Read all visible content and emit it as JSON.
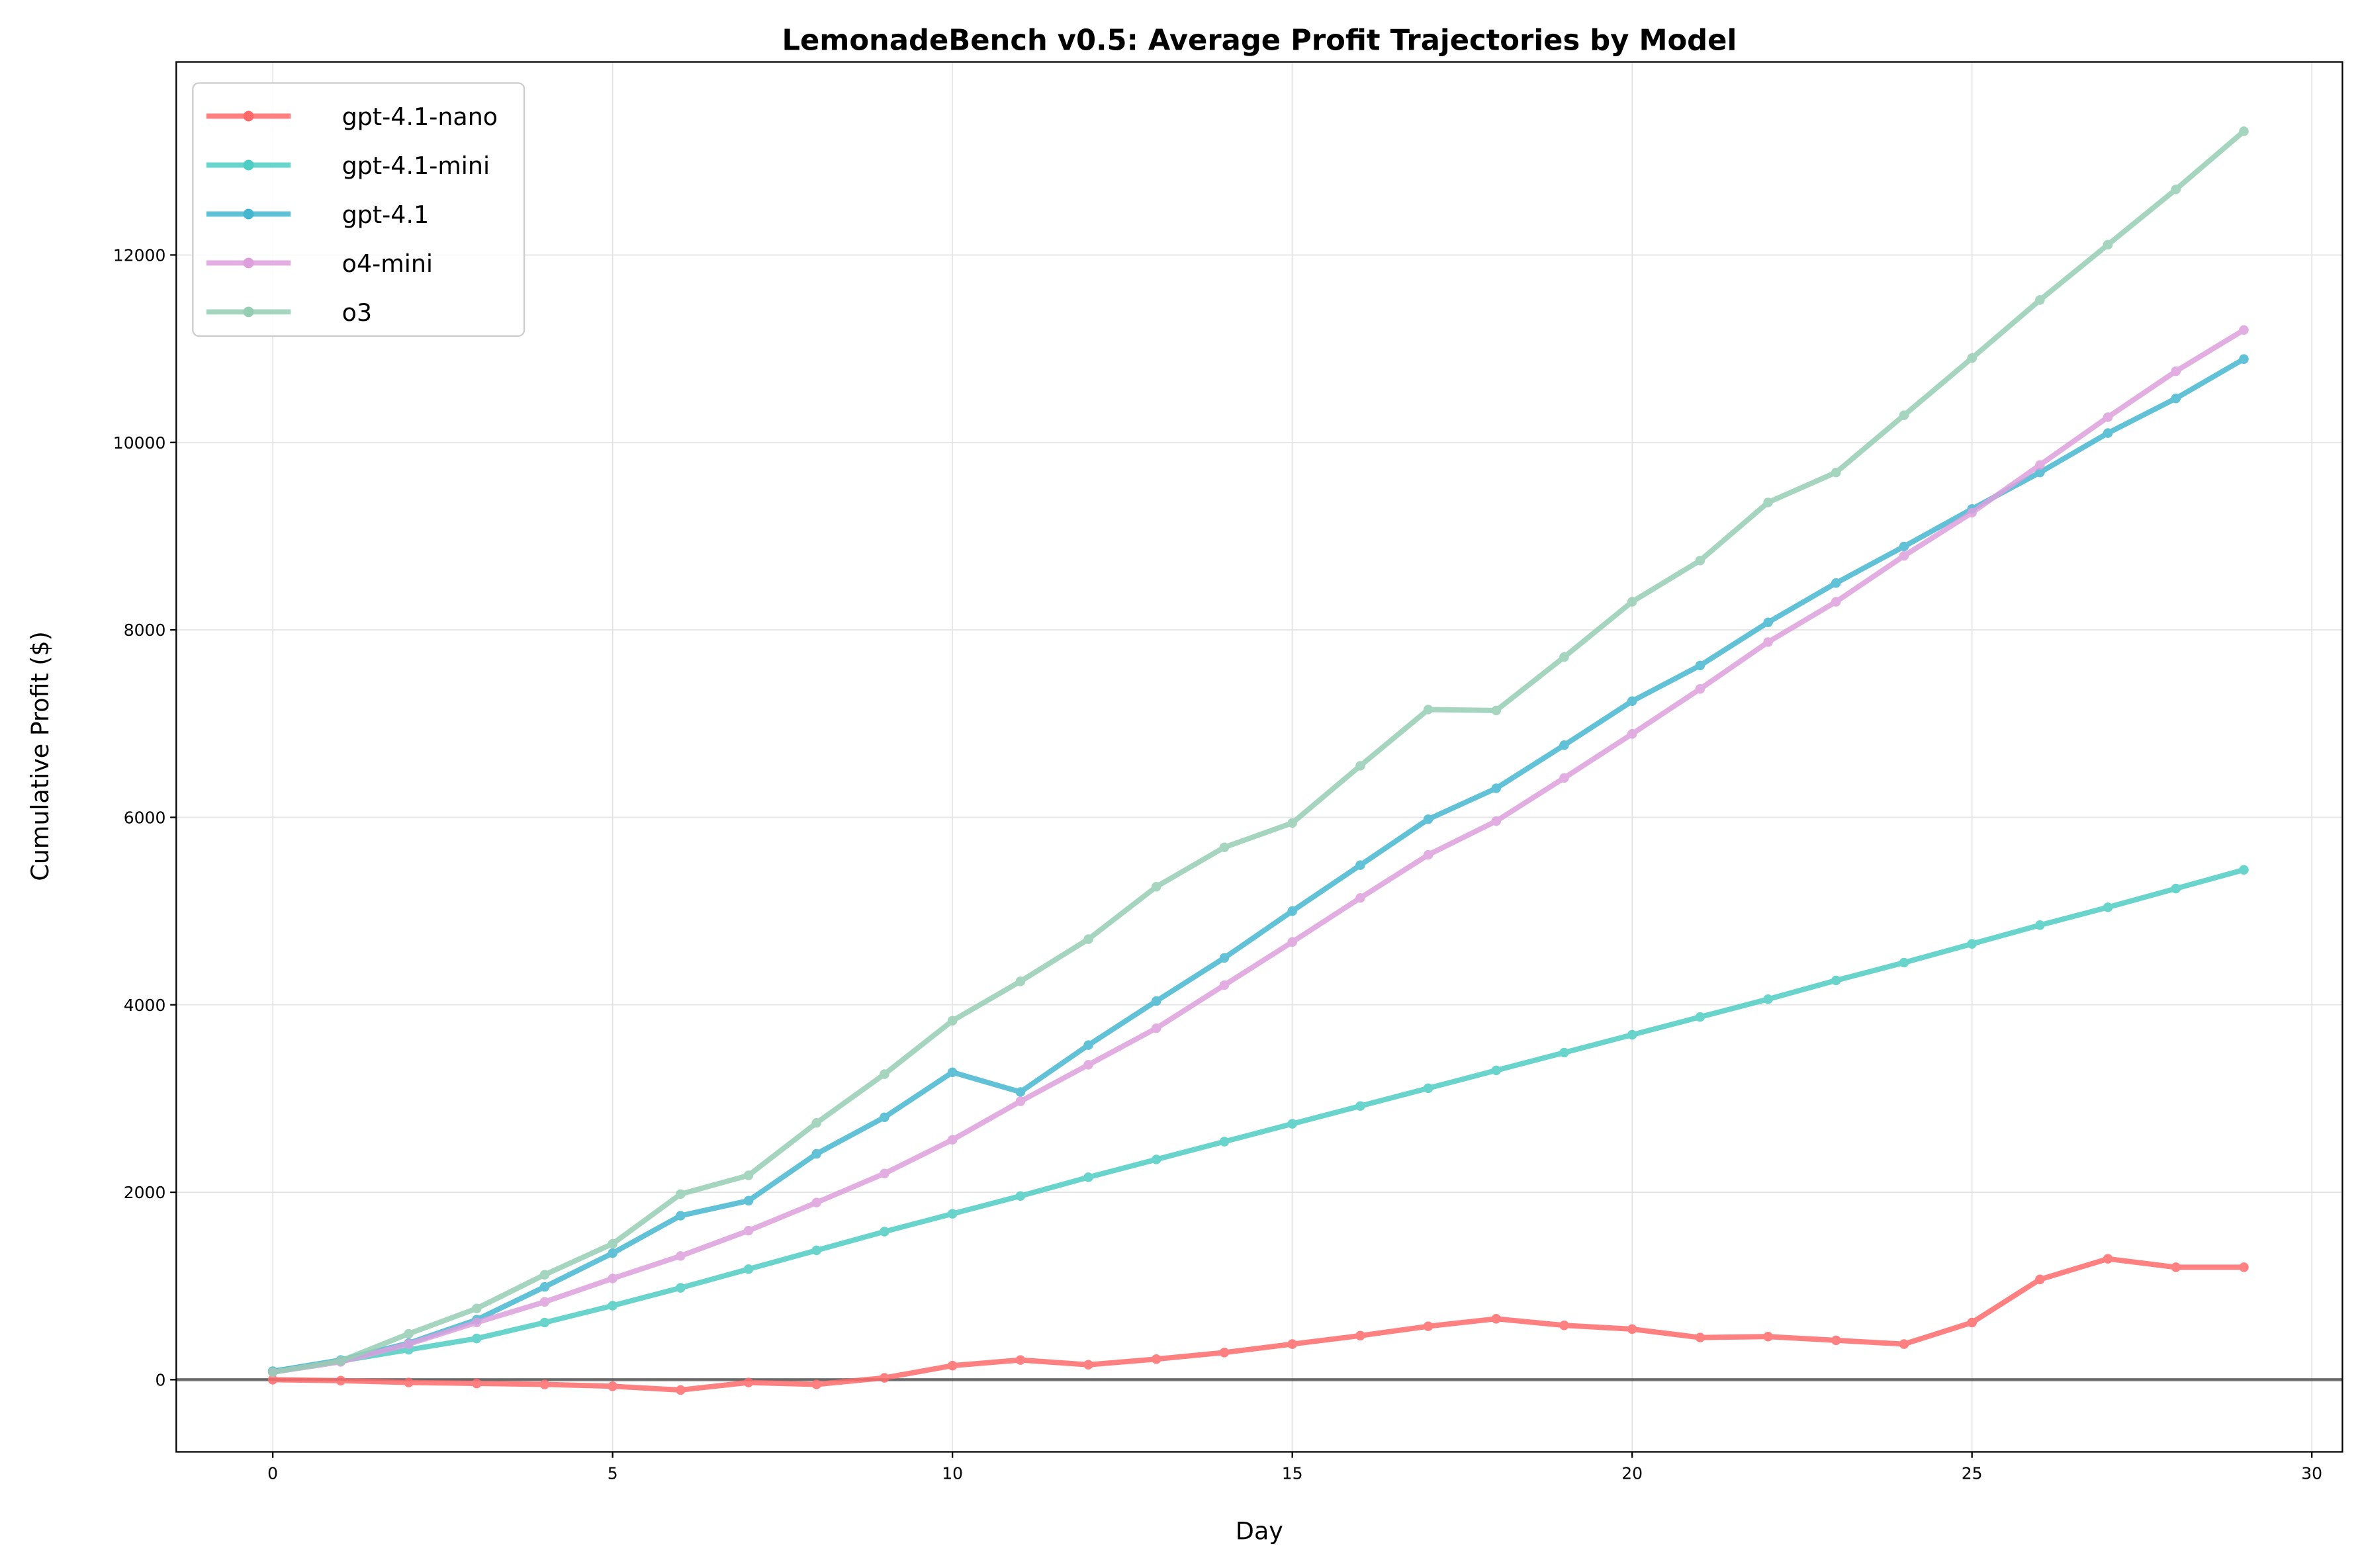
{
  "chart_data": {
    "type": "line",
    "title": "LemonadeBench v0.5: Average Profit Trajectories by Model",
    "xlabel": "Day",
    "ylabel": "Cumulative Profit ($)",
    "xlim": [
      -1.42,
      30.45
    ],
    "ylim": [
      -770,
      14060
    ],
    "xticks": [
      0,
      5,
      10,
      15,
      20,
      25,
      30
    ],
    "yticks": [
      0,
      2000,
      4000,
      6000,
      8000,
      10000,
      12000
    ],
    "grid": true,
    "legend_position": "upper-left",
    "zero_line": true,
    "x": [
      0,
      1,
      2,
      3,
      4,
      5,
      6,
      7,
      8,
      9,
      10,
      11,
      12,
      13,
      14,
      15,
      16,
      17,
      18,
      19,
      20,
      21,
      22,
      23,
      24,
      25,
      26,
      27,
      28,
      29
    ],
    "series": [
      {
        "name": "gpt-4.1-nano",
        "color": "#FF6B6B",
        "values": [
          0,
          -10,
          -30,
          -40,
          -50,
          -70,
          -110,
          -30,
          -50,
          20,
          150,
          210,
          160,
          220,
          290,
          380,
          470,
          570,
          650,
          580,
          540,
          450,
          460,
          420,
          380,
          610,
          1070,
          1290,
          1200,
          1200
        ]
      },
      {
        "name": "gpt-4.1-mini",
        "color": "#4ECDC4",
        "values": [
          90,
          200,
          320,
          440,
          610,
          790,
          980,
          1180,
          1380,
          1580,
          1770,
          1960,
          2160,
          2350,
          2540,
          2730,
          2920,
          3110,
          3300,
          3490,
          3680,
          3870,
          4060,
          4260,
          4450,
          4650,
          4850,
          5040,
          5240,
          5440
        ]
      },
      {
        "name": "gpt-4.1",
        "color": "#45B7D1",
        "values": [
          90,
          210,
          390,
          640,
          990,
          1350,
          1750,
          1910,
          2410,
          2800,
          3280,
          3070,
          3570,
          4040,
          4500,
          5000,
          5490,
          5980,
          6310,
          6770,
          7240,
          7620,
          8080,
          8500,
          8890,
          9290,
          9680,
          10100,
          10470,
          10890
        ]
      },
      {
        "name": "o4-mini",
        "color": "#DDA0DD",
        "values": [
          80,
          190,
          380,
          610,
          830,
          1080,
          1320,
          1590,
          1890,
          2200,
          2560,
          2970,
          3360,
          3750,
          4210,
          4670,
          5140,
          5600,
          5960,
          6420,
          6890,
          7370,
          7870,
          8300,
          8790,
          9250,
          9760,
          10270,
          10760,
          11200
        ]
      },
      {
        "name": "o3",
        "color": "#96CEB4",
        "values": [
          80,
          200,
          490,
          760,
          1120,
          1450,
          1980,
          2180,
          2740,
          3260,
          3830,
          4250,
          4700,
          5260,
          5680,
          5940,
          6550,
          7150,
          7140,
          7710,
          8300,
          8740,
          9360,
          9680,
          10290,
          10900,
          11520,
          12110,
          12700,
          13320
        ]
      }
    ]
  }
}
